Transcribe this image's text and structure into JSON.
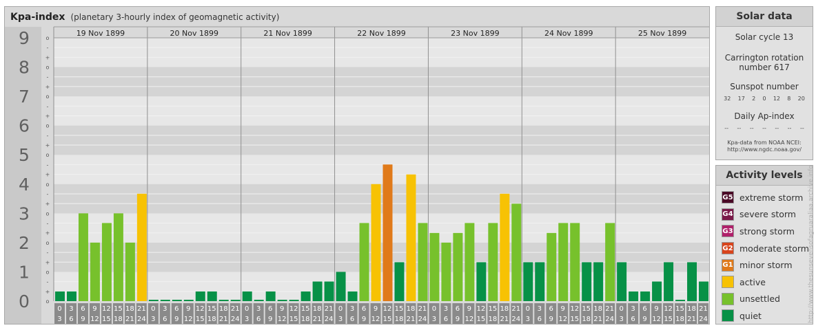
{
  "header": {
    "title": "Kpa-index",
    "subtitle": "(planetary 3-hourly index of geomagnetic activity)"
  },
  "chart_data": {
    "type": "bar",
    "title": "Kpa-index",
    "subtitle": "(planetary 3-hourly index of geomagnetic activity)",
    "ylim": [
      0,
      9
    ],
    "y_ticks": [
      "0",
      "1",
      "2",
      "3",
      "4",
      "5",
      "6",
      "7",
      "8",
      "9"
    ],
    "minor_ticks": [
      "o",
      "+",
      "-"
    ],
    "days": [
      "19 Nov 1899",
      "20 Nov 1899",
      "21 Nov 1899",
      "22 Nov 1899",
      "23 Nov 1899",
      "24 Nov 1899",
      "25 Nov 1899"
    ],
    "interval_start": [
      "0",
      "3",
      "6",
      "9",
      "12",
      "15",
      "18",
      "21"
    ],
    "interval_end": [
      "3",
      "6",
      "9",
      "12",
      "15",
      "18",
      "21",
      "24"
    ],
    "grid": true,
    "series": [
      {
        "values": [
          0.33,
          0.33,
          3.0,
          2.0,
          2.67,
          3.0,
          2.0,
          3.67,
          0.0,
          0.0,
          0.0,
          0.0,
          0.33,
          0.33,
          0.0,
          0.0,
          0.33,
          0.0,
          0.33,
          0.0,
          0.0,
          0.33,
          0.67,
          0.67,
          1.0,
          0.33,
          2.67,
          4.0,
          4.67,
          1.33,
          4.33,
          2.67,
          2.33,
          2.0,
          2.33,
          2.67,
          1.33,
          2.67,
          3.67,
          3.33,
          1.33,
          1.33,
          2.33,
          2.67,
          2.67,
          1.33,
          1.33,
          2.67,
          1.33,
          0.33,
          0.33,
          0.67,
          1.33,
          0.0,
          1.33,
          0.67
        ]
      }
    ]
  },
  "solar": {
    "title": "Solar data",
    "cycle": "Solar cycle 13",
    "carrington_line1": "Carrington rotation",
    "carrington_line2": "number 617",
    "sunspot_title": "Sunspot number",
    "sunspots": [
      "32",
      "17",
      "2",
      "0",
      "12",
      "8",
      "20"
    ],
    "ap_title": "Daily Ap-index",
    "ap_values": [
      "--",
      "--",
      "--",
      "--",
      "--",
      "--",
      "--"
    ],
    "source_line1": "Kpa-data from NOAA NCEI:",
    "source_line2": "http://www.ngdc.noaa.gov/"
  },
  "levels": {
    "title": "Activity levels",
    "items": [
      {
        "code": "G5",
        "label": "extreme storm",
        "color": "#4a0a26"
      },
      {
        "code": "G4",
        "label": "severe storm",
        "color": "#7a1848"
      },
      {
        "code": "G3",
        "label": "strong storm",
        "color": "#b0206a"
      },
      {
        "code": "G2",
        "label": "moderate storm",
        "color": "#d8441c"
      },
      {
        "code": "G1",
        "label": "minor storm",
        "color": "#e07a1a"
      },
      {
        "code": "",
        "label": "active",
        "color": "#f7c204"
      },
      {
        "code": "",
        "label": "unsettled",
        "color": "#77c12c"
      },
      {
        "code": "",
        "label": "quiet",
        "color": "#079147"
      }
    ]
  },
  "watermark": "http://www.thesunsevensofagruaraliaa.archive.info"
}
